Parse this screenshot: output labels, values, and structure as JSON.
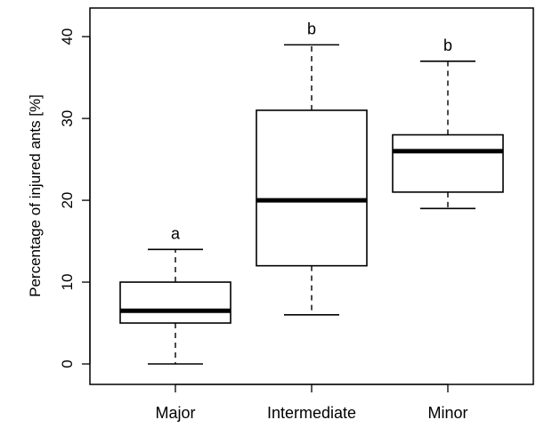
{
  "chart_data": {
    "type": "boxplot",
    "ylabel": "Percentage of injured ants [%]",
    "xlabel": "",
    "title": "",
    "ylim": [
      -2.5,
      43.5
    ],
    "yticks": [
      "0",
      "10",
      "20",
      "30",
      "40"
    ],
    "categories": [
      "Major",
      "Intermediate",
      "Minor"
    ],
    "boxes": [
      {
        "category": "Major",
        "whisker_low": 0,
        "q1": 5,
        "median": 6.5,
        "q3": 10,
        "whisker_high": 14,
        "significance": "a"
      },
      {
        "category": "Intermediate",
        "whisker_low": 6,
        "q1": 12,
        "median": 20,
        "q3": 31,
        "whisker_high": 39,
        "significance": "b"
      },
      {
        "category": "Minor",
        "whisker_low": 19,
        "q1": 21,
        "median": 26,
        "q3": 28,
        "whisker_high": 37,
        "significance": "b"
      }
    ]
  }
}
